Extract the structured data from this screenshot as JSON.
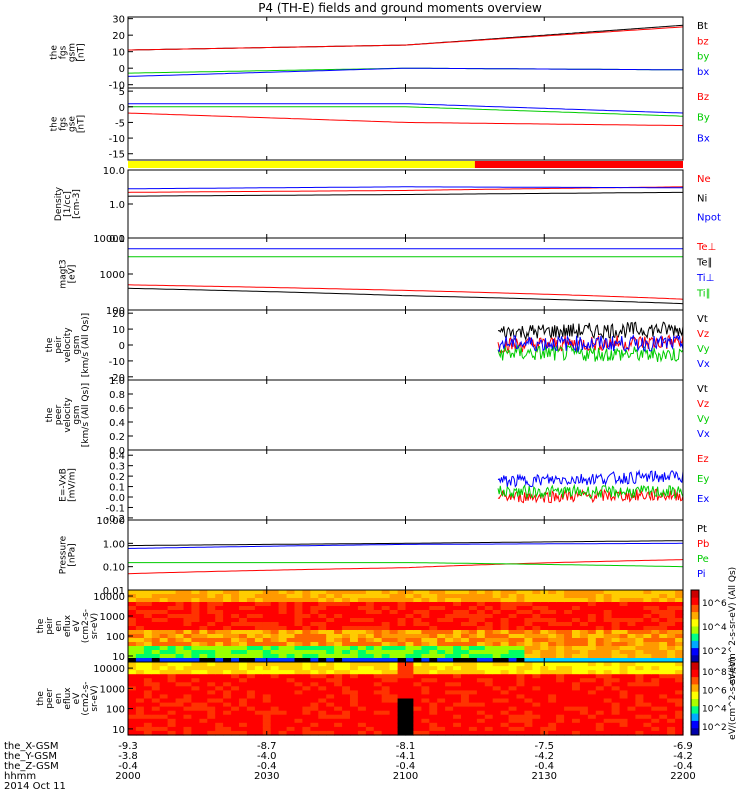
{
  "title": "P4 (TH-E) fields and ground moments overview",
  "colors": {
    "black": "#000000",
    "red": "#ff0000",
    "green": "#00dd00",
    "blue": "#0000ff",
    "yellow": "#ffff00"
  },
  "bar_strip": {
    "segments": [
      {
        "label": "yellow",
        "color": "#ffff00",
        "x0": "2000",
        "x1": "2115"
      },
      {
        "label": "red",
        "color": "#ff0000",
        "x0": "2115",
        "x1": "2200"
      }
    ]
  },
  "chart_data": [
    {
      "type": "line",
      "id": "p1",
      "ylabel": [
        "the",
        "fgs",
        "gsm",
        "[nT]"
      ],
      "yticks": [
        "30",
        "20",
        "10",
        "0",
        "-10"
      ],
      "ylim": [
        -12,
        31
      ],
      "series": [
        {
          "name": "Bt",
          "color": "red-black",
          "levels": [
            {
              "x": "2000",
              "y": 11
            },
            {
              "x": "2100",
              "y": 14
            },
            {
              "x": "2200",
              "y": 26
            }
          ]
        },
        {
          "name": "bz",
          "color": "red",
          "levels": [
            {
              "x": "2000",
              "y": 11
            },
            {
              "x": "2100",
              "y": 14
            },
            {
              "x": "2200",
              "y": 25
            }
          ]
        },
        {
          "name": "by",
          "color": "green",
          "levels": [
            {
              "x": "2000",
              "y": -3
            },
            {
              "x": "2100",
              "y": 0
            },
            {
              "x": "2200",
              "y": -1
            }
          ]
        },
        {
          "name": "bx",
          "color": "blue",
          "levels": [
            {
              "x": "2000",
              "y": -5
            },
            {
              "x": "2100",
              "y": 0
            },
            {
              "x": "2200",
              "y": -1
            }
          ]
        }
      ]
    },
    {
      "type": "line",
      "id": "p2",
      "ylabel": [
        "the",
        "fgs",
        "gse",
        "[nT]"
      ],
      "yticks": [
        "5",
        "0",
        "-5",
        "-10",
        "-15"
      ],
      "ylim": [
        -17,
        6
      ],
      "series": [
        {
          "name": "Bz",
          "color": "red",
          "levels": [
            {
              "x": "2000",
              "y": -2
            },
            {
              "x": "2100",
              "y": -5
            },
            {
              "x": "2200",
              "y": -6
            }
          ]
        },
        {
          "name": "By",
          "color": "green",
          "levels": [
            {
              "x": "2000",
              "y": 0
            },
            {
              "x": "2100",
              "y": 0
            },
            {
              "x": "2200",
              "y": -3
            }
          ]
        },
        {
          "name": "Bx",
          "color": "blue",
          "levels": [
            {
              "x": "2000",
              "y": 1
            },
            {
              "x": "2100",
              "y": 1
            },
            {
              "x": "2200",
              "y": -2
            }
          ]
        }
      ]
    },
    {
      "type": "line",
      "id": "p3",
      "log": true,
      "ylabel": [
        "Density",
        "[1/cc]",
        "[cm-3]"
      ],
      "yticks": [
        "10.0",
        "1.0",
        "0.1"
      ],
      "ylim": [
        0.1,
        10
      ],
      "series": [
        {
          "name": "Ne",
          "color": "red",
          "levels": [
            {
              "x": "2000",
              "y": 2.2
            },
            {
              "x": "2100",
              "y": 2.5
            },
            {
              "x": "2200",
              "y": 3.2
            }
          ]
        },
        {
          "name": "Ni",
          "color": "black",
          "levels": [
            {
              "x": "2000",
              "y": 1.7
            },
            {
              "x": "2100",
              "y": 1.9
            },
            {
              "x": "2200",
              "y": 2.2
            }
          ]
        },
        {
          "name": "Npot",
          "color": "blue",
          "levels": [
            {
              "x": "2000",
              "y": 2.8
            },
            {
              "x": "2100",
              "y": 3.2
            },
            {
              "x": "2200",
              "y": 3.0
            }
          ]
        }
      ]
    },
    {
      "type": "line",
      "id": "p4",
      "log": true,
      "ylabel": [
        "magt3",
        "[eV]"
      ],
      "yticks": [
        "10000",
        "1000",
        "100"
      ],
      "ylim": [
        100,
        10000
      ],
      "series": [
        {
          "name": "Te⊥",
          "color": "red",
          "levels": [
            {
              "x": "2000",
              "y": 500
            },
            {
              "x": "2100",
              "y": 350
            },
            {
              "x": "2200",
              "y": 200
            }
          ]
        },
        {
          "name": "Te∥",
          "color": "black",
          "levels": [
            {
              "x": "2000",
              "y": 400
            },
            {
              "x": "2100",
              "y": 250
            },
            {
              "x": "2200",
              "y": 150
            }
          ]
        },
        {
          "name": "Ti⊥",
          "color": "blue",
          "levels": [
            {
              "x": "2000",
              "y": 5000
            },
            {
              "x": "2200",
              "y": 5000
            }
          ]
        },
        {
          "name": "Ti∥",
          "color": "green",
          "levels": [
            {
              "x": "2000",
              "y": 3000
            },
            {
              "x": "2200",
              "y": 3000
            }
          ]
        }
      ]
    },
    {
      "type": "line",
      "id": "p5",
      "ylabel": [
        "the",
        "peir",
        "velocity",
        "gsm",
        "[km/s (All Qs)]"
      ],
      "yticks": [
        "20",
        "10",
        "0",
        "-10",
        "-20"
      ],
      "ylim": [
        -22,
        22
      ],
      "series": [
        {
          "name": "Vt",
          "color": "black",
          "levels": [
            {
              "x": "2120",
              "y": 8
            },
            {
              "x": "2200",
              "y": 10
            }
          ]
        },
        {
          "name": "Vz",
          "color": "red",
          "levels": [
            {
              "x": "2120",
              "y": 0
            },
            {
              "x": "2200",
              "y": 2
            }
          ]
        },
        {
          "name": "Vy",
          "color": "green",
          "levels": [
            {
              "x": "2120",
              "y": -5
            },
            {
              "x": "2200",
              "y": -6
            }
          ]
        },
        {
          "name": "Vx",
          "color": "blue",
          "levels": [
            {
              "x": "2120",
              "y": 1
            },
            {
              "x": "2200",
              "y": 1
            }
          ]
        }
      ]
    },
    {
      "type": "line",
      "id": "p6",
      "ylabel": [
        "the",
        "peer",
        "velocity",
        "gsm",
        "[km/s (All Qs)]"
      ],
      "yticks": [
        "1.0",
        "0.8",
        "0.6",
        "0.4",
        "0.2",
        "0.0"
      ],
      "ylim": [
        0,
        1
      ],
      "series": [
        {
          "name": "Vt",
          "color": "black",
          "levels": []
        },
        {
          "name": "Vz",
          "color": "red",
          "levels": []
        },
        {
          "name": "Vy",
          "color": "green",
          "levels": []
        },
        {
          "name": "Vx",
          "color": "blue",
          "levels": []
        }
      ]
    },
    {
      "type": "line",
      "id": "p7",
      "ylabel": [
        "E=-VxB",
        "[mV/m]"
      ],
      "yticks": [
        "0.4",
        "0.3",
        "0.2",
        "0.1",
        "0.0",
        "-0.1",
        "-0.2"
      ],
      "ylim": [
        -0.22,
        0.45
      ],
      "series": [
        {
          "name": "Ez",
          "color": "red",
          "levels": [
            {
              "x": "2120",
              "y": 0.0
            },
            {
              "x": "2200",
              "y": 0.02
            }
          ]
        },
        {
          "name": "Ey",
          "color": "green",
          "levels": [
            {
              "x": "2120",
              "y": 0.05
            },
            {
              "x": "2200",
              "y": 0.05
            }
          ]
        },
        {
          "name": "Ex",
          "color": "blue",
          "levels": [
            {
              "x": "2120",
              "y": 0.15
            },
            {
              "x": "2200",
              "y": 0.2
            }
          ]
        }
      ]
    },
    {
      "type": "line",
      "id": "p8",
      "log": true,
      "ylabel": [
        "Pressure",
        "[nPa]"
      ],
      "yticks": [
        "10.00",
        "1.00",
        "0.10",
        "0.01"
      ],
      "ylim": [
        0.01,
        10
      ],
      "series": [
        {
          "name": "Pt",
          "color": "black",
          "levels": [
            {
              "x": "2000",
              "y": 0.8
            },
            {
              "x": "2100",
              "y": 1.0
            },
            {
              "x": "2200",
              "y": 1.3
            }
          ]
        },
        {
          "name": "Pb",
          "color": "red",
          "levels": [
            {
              "x": "2000",
              "y": 0.05
            },
            {
              "x": "2100",
              "y": 0.09
            },
            {
              "x": "2200",
              "y": 0.2
            }
          ]
        },
        {
          "name": "Pe",
          "color": "green",
          "levels": [
            {
              "x": "2000",
              "y": 0.15
            },
            {
              "x": "2100",
              "y": 0.15
            },
            {
              "x": "2200",
              "y": 0.1
            }
          ]
        },
        {
          "name": "Pi",
          "color": "blue",
          "levels": [
            {
              "x": "2000",
              "y": 0.6
            },
            {
              "x": "2100",
              "y": 0.9
            },
            {
              "x": "2200",
              "y": 1.0
            }
          ]
        }
      ]
    },
    {
      "type": "heatmap",
      "id": "p9",
      "ylabel": [
        "the",
        "peir",
        "en",
        "eflux",
        "eV",
        "(cm2-s-",
        "sr-eV)"
      ],
      "yticks": [
        "10000",
        "1000",
        "100",
        "10"
      ],
      "log": true,
      "ylim": [
        5,
        20000
      ],
      "cbar_label": "eV/(cm^2-s-sr-eV) (All Qs)",
      "cbar_ticks": [
        "10^6",
        "10^4",
        "10^2"
      ]
    },
    {
      "type": "heatmap",
      "id": "p10",
      "ylabel": [
        "the",
        "peer",
        "en",
        "eflux",
        "eV",
        "(cm2-s-",
        "sr-eV)"
      ],
      "yticks": [
        "10000",
        "1000",
        "100",
        "10"
      ],
      "log": true,
      "ylim": [
        5,
        20000
      ],
      "cbar_label": "eV/(cm^2-s-sr-eV)",
      "cbar_ticks": [
        "10^8",
        "10^6",
        "10^4",
        "10^2"
      ]
    }
  ],
  "xaxis": {
    "ticks": [
      "2000",
      "2030",
      "2100",
      "2130",
      "2200"
    ],
    "rows": [
      {
        "label": "the_X-GSM",
        "values": [
          "-9.3",
          "-8.7",
          "-8.1",
          "-7.5",
          "-6.9"
        ]
      },
      {
        "label": "the_Y-GSM",
        "values": [
          "-3.8",
          "-4.0",
          "-4.1",
          "-4.2",
          "-4.2"
        ]
      },
      {
        "label": "the_Z-GSM",
        "values": [
          "-0.4",
          "-0.4",
          "-0.4",
          "-0.4",
          "-0.4"
        ]
      },
      {
        "label": "hhmm",
        "values": [
          "2000",
          "2030",
          "2100",
          "2130",
          "2200"
        ]
      }
    ],
    "date": "2014 Oct 11"
  }
}
